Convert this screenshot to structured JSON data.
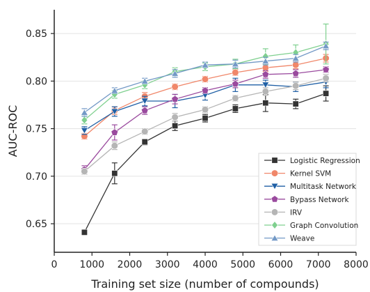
{
  "chart_data": {
    "type": "line",
    "xlabel": "Training set size (number of compounds)",
    "ylabel": "AUC-ROC",
    "xlim": [
      0,
      8000
    ],
    "ylim": [
      0.62,
      0.875
    ],
    "xticks": [
      0,
      1000,
      2000,
      3000,
      4000,
      5000,
      6000,
      7000,
      8000
    ],
    "yticks": [
      0.65,
      0.7,
      0.75,
      0.8,
      0.85
    ],
    "ytick_labels": [
      "0.65",
      "0.70",
      "0.75",
      "0.80",
      "0.85"
    ],
    "grid": "horizontal",
    "legend_position": "lower-right",
    "x": [
      800,
      1600,
      2400,
      3200,
      4000,
      4800,
      5600,
      6400,
      7200
    ],
    "series": [
      {
        "name": "Logistic Regression",
        "color": "#333333",
        "marker": "square",
        "values": [
          0.641,
          0.703,
          0.736,
          0.753,
          0.761,
          0.771,
          0.777,
          0.776,
          0.787
        ],
        "errors": [
          0.0,
          0.011,
          0.003,
          0.005,
          0.004,
          0.004,
          0.009,
          0.005,
          0.008
        ]
      },
      {
        "name": "Kernel SVM",
        "color": "#f0876a",
        "marker": "circle",
        "values": [
          0.742,
          0.769,
          0.784,
          0.794,
          0.802,
          0.809,
          0.814,
          0.817,
          0.824
        ],
        "errors": [
          0.003,
          0.004,
          0.004,
          0.003,
          0.003,
          0.003,
          0.004,
          0.004,
          0.004
        ]
      },
      {
        "name": "Multitask Network",
        "color": "#1f5fa5",
        "marker": "triangle-down",
        "values": [
          0.748,
          0.768,
          0.779,
          0.779,
          0.785,
          0.796,
          0.796,
          0.794,
          0.799
        ],
        "errors": [
          0.004,
          0.005,
          0.005,
          0.007,
          0.005,
          0.007,
          0.005,
          0.005,
          0.006
        ]
      },
      {
        "name": "Bypass Network",
        "color": "#9a4a9e",
        "marker": "pentagon",
        "values": [
          0.707,
          0.746,
          0.769,
          0.781,
          0.79,
          0.797,
          0.807,
          0.808,
          0.812
        ],
        "errors": [
          0.004,
          0.008,
          0.004,
          0.005,
          0.003,
          0.004,
          0.004,
          0.004,
          0.003
        ]
      },
      {
        "name": "IRV",
        "color": "#b5b5b5",
        "marker": "circle",
        "values": [
          0.705,
          0.732,
          0.747,
          0.762,
          0.77,
          0.782,
          0.789,
          0.795,
          0.803
        ],
        "errors": [
          0.003,
          0.004,
          0.003,
          0.004,
          0.003,
          0.003,
          0.004,
          0.004,
          0.004
        ]
      },
      {
        "name": "Graph Convolution",
        "color": "#7fd08f",
        "marker": "diamond",
        "values": [
          0.759,
          0.786,
          0.796,
          0.81,
          0.815,
          0.818,
          0.826,
          0.83,
          0.839
        ],
        "errors": [
          0.004,
          0.004,
          0.004,
          0.004,
          0.004,
          0.005,
          0.008,
          0.008,
          0.021
        ]
      },
      {
        "name": "Weave",
        "color": "#7399c6",
        "marker": "triangle-up",
        "values": [
          0.767,
          0.79,
          0.8,
          0.808,
          0.817,
          0.818,
          0.821,
          0.824,
          0.837
        ],
        "errors": [
          0.004,
          0.003,
          0.003,
          0.004,
          0.003,
          0.004,
          0.004,
          0.004,
          0.004
        ]
      }
    ]
  }
}
